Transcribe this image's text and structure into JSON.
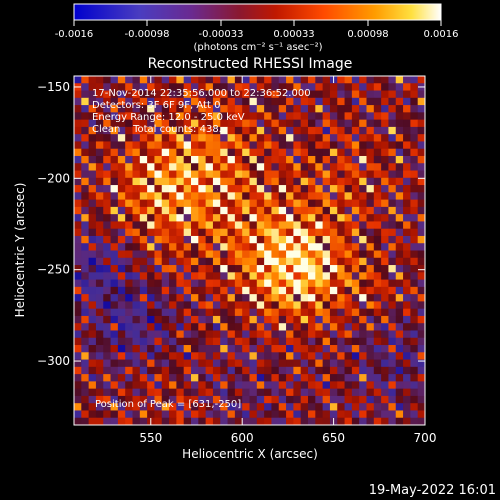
{
  "footer": {
    "timestamp": "19-May-2022 16:01"
  },
  "colorbar": {
    "tick_labels": [
      "-0.0016",
      "-0.00098",
      "-0.00033",
      "0.00033",
      "0.00098",
      "0.0016"
    ],
    "units_label": "(photons cm⁻² s⁻¹ asec⁻²)",
    "range": [
      -0.0016,
      0.0016
    ]
  },
  "chart_data": {
    "type": "heatmap",
    "title": "Reconstructed RHESSI Image",
    "xlabel": "Heliocentric X (arcsec)",
    "ylabel": "Heliocentric Y (arcsec)",
    "xlim": [
      508,
      700
    ],
    "ylim": [
      -335,
      -144
    ],
    "xticks": [
      550,
      600,
      650,
      700
    ],
    "yticks": [
      -150,
      -200,
      -250,
      -300
    ],
    "xtick_labels": [
      "550",
      "600",
      "650",
      "700"
    ],
    "ytick_labels": [
      "−150",
      "−200",
      "−250",
      "−300"
    ],
    "annotations": [
      "17-Nov-2014 22:35:56.000 to 22:36:52.000",
      "Detectors: 3F 6F 9F, Att 0",
      "Energy Range: 12.0 - 25.0 keV",
      "Clean    Total counts: 438.",
      "Position of Peak = [631,-250]"
    ],
    "peak": [
      631,
      -250
    ]
  },
  "colors": {
    "background": "#000000",
    "foreground": "#ffffff",
    "colormap": [
      "#0000c8",
      "#3a2a9a",
      "#5a2080",
      "#902010",
      "#d02000",
      "#ff6000",
      "#ffc000",
      "#ffffff"
    ]
  }
}
